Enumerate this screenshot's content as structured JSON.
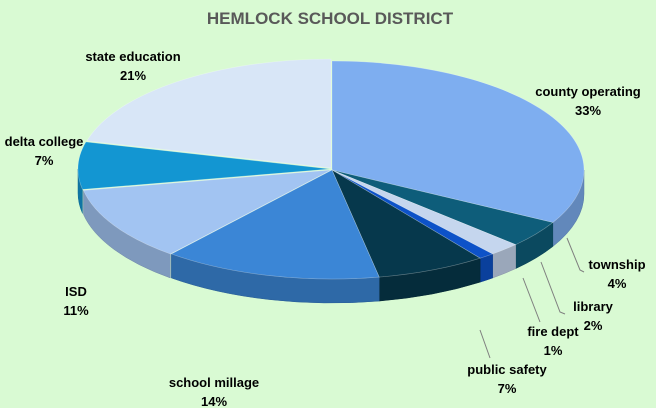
{
  "chart_data": {
    "type": "pie",
    "style": "3d-exploded",
    "title": "HEMLOCK SCHOOL DISTRICT",
    "slices": [
      {
        "label": "county operating",
        "value": 33,
        "pct_label": "33%",
        "color": "#7eaef0"
      },
      {
        "label": "township",
        "value": 4,
        "pct_label": "4%",
        "color": "#0e5d7a"
      },
      {
        "label": "library",
        "value": 2,
        "pct_label": "2%",
        "color": "#c5d6ee"
      },
      {
        "label": "fire dept",
        "value": 1,
        "pct_label": "1%",
        "color": "#0d52c8"
      },
      {
        "label": "public safety",
        "value": 7,
        "pct_label": "7%",
        "color": "#06384c"
      },
      {
        "label": "school millage",
        "value": 14,
        "pct_label": "14%",
        "color": "#3b86d6"
      },
      {
        "label": "ISD",
        "value": 11,
        "pct_label": "11%",
        "color": "#a2c4f2"
      },
      {
        "label": "delta college",
        "value": 7,
        "pct_label": "7%",
        "color": "#1396d2"
      },
      {
        "label": "state education",
        "value": 21,
        "pct_label": "21%",
        "color": "#d8e6f7"
      }
    ]
  }
}
